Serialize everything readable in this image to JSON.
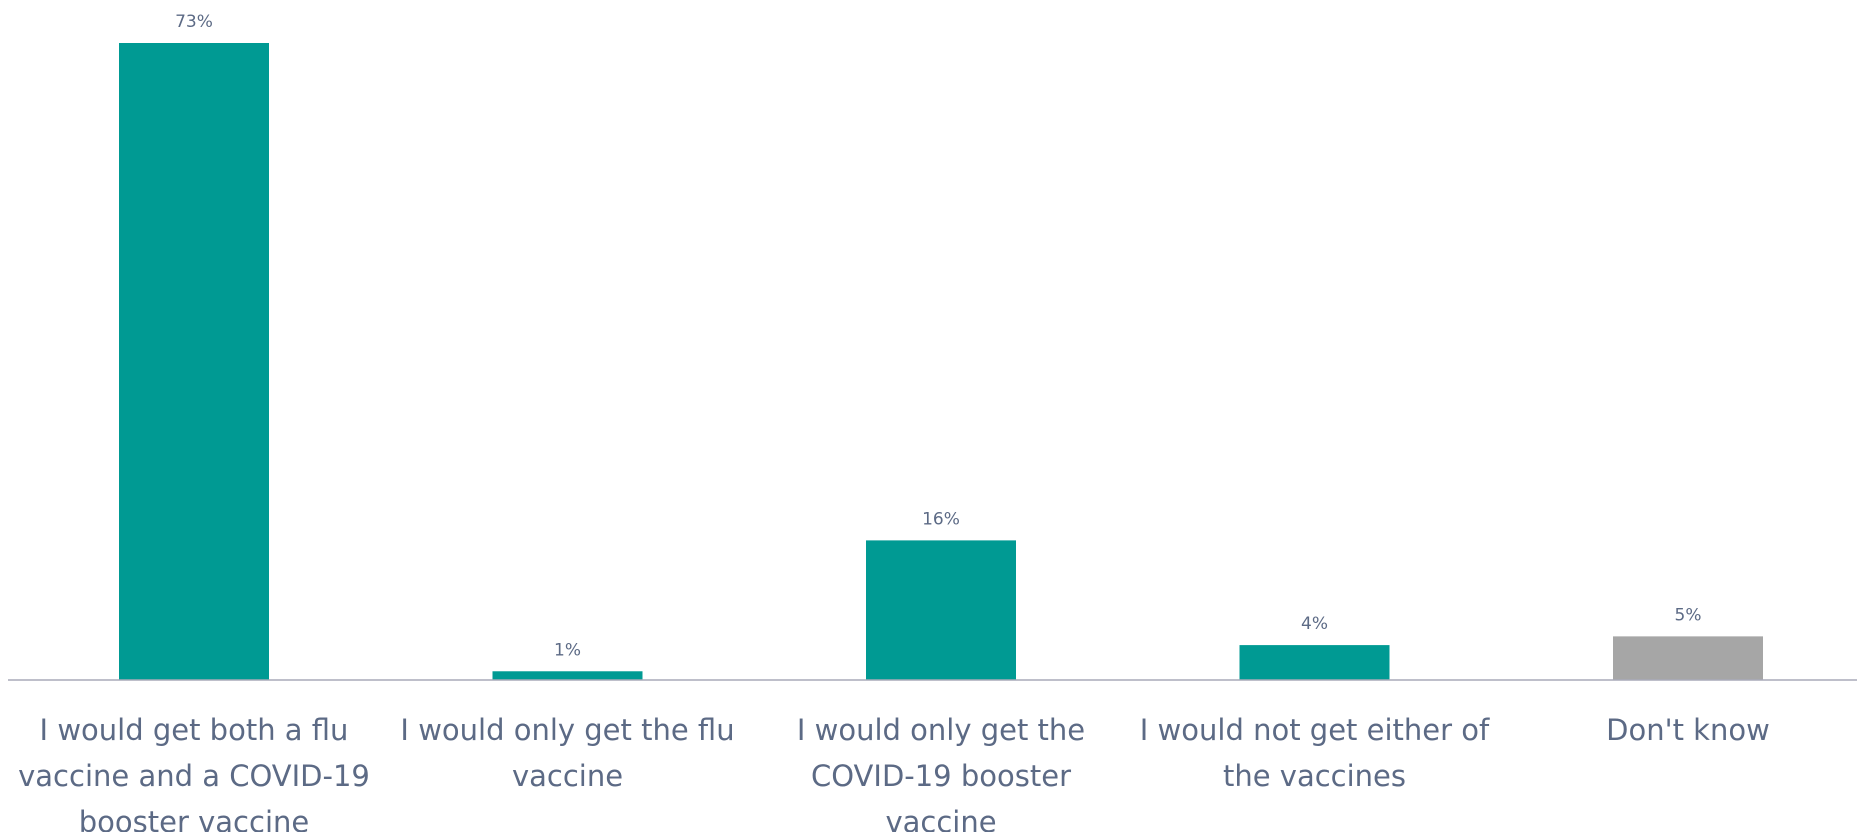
{
  "chart_data": {
    "type": "bar",
    "categories": [
      [
        "I would get both a flu",
        "vaccine and a COVID-19",
        "booster vaccine"
      ],
      [
        "I would only get the flu",
        "vaccine"
      ],
      [
        "I would only get the",
        "COVID-19 booster",
        "vaccine"
      ],
      [
        "I would not get either of",
        "the vaccines"
      ],
      [
        "Don't know"
      ]
    ],
    "values": [
      73,
      1,
      16,
      4,
      5
    ],
    "value_labels": [
      "73%",
      "1%",
      "16%",
      "4%",
      "5%"
    ],
    "bar_colors": [
      "#009a93",
      "#009a93",
      "#009a93",
      "#009a93",
      "#a6a6a6"
    ],
    "title": "",
    "xlabel": "",
    "ylabel": "",
    "ylim": [
      0,
      73
    ],
    "grid": false,
    "legend": "none"
  },
  "colors": {
    "accent": "#009a93",
    "neutral": "#a6a6a6",
    "axis": "#a8aab8",
    "text": "#5c6a85"
  }
}
